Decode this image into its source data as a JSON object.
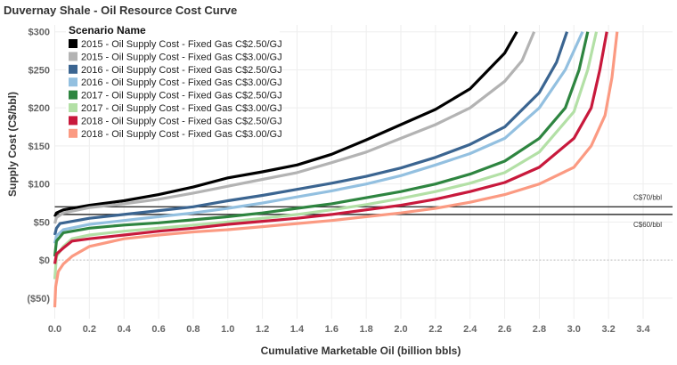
{
  "chart_data": {
    "type": "line",
    "title": "Duvernay Shale - Oil Resource Cost Curve",
    "xlabel": "Cumulative Marketable Oil (billion bbls)",
    "ylabel": "Supply Cost (C$/bbl)",
    "xlim": [
      0,
      3.57
    ],
    "ylim": [
      -77,
      309
    ],
    "grid": true,
    "legend": {
      "title": "Scenario Name",
      "placement": "top-left"
    },
    "x_ticks": [
      {
        "value": 0.0,
        "label": "0.0"
      },
      {
        "value": 0.2,
        "label": "0.2"
      },
      {
        "value": 0.4,
        "label": "0.4"
      },
      {
        "value": 0.6,
        "label": "0.6"
      },
      {
        "value": 0.8,
        "label": "0.8"
      },
      {
        "value": 1.0,
        "label": "1.0"
      },
      {
        "value": 1.2,
        "label": "1.2"
      },
      {
        "value": 1.4,
        "label": "1.4"
      },
      {
        "value": 1.6,
        "label": "1.6"
      },
      {
        "value": 1.8,
        "label": "1.8"
      },
      {
        "value": 2.0,
        "label": "2.0"
      },
      {
        "value": 2.2,
        "label": "2.2"
      },
      {
        "value": 2.4,
        "label": "2.4"
      },
      {
        "value": 2.6,
        "label": "2.6"
      },
      {
        "value": 2.8,
        "label": "2.8"
      },
      {
        "value": 3.0,
        "label": "3.0"
      },
      {
        "value": 3.2,
        "label": "3.2"
      },
      {
        "value": 3.4,
        "label": "3.4"
      }
    ],
    "y_ticks": [
      {
        "value": 300,
        "label": "$300"
      },
      {
        "value": 250,
        "label": "$250"
      },
      {
        "value": 200,
        "label": "$200"
      },
      {
        "value": 150,
        "label": "$150"
      },
      {
        "value": 100,
        "label": "$100"
      },
      {
        "value": 50,
        "label": "$50"
      },
      {
        "value": 0,
        "label": "$0"
      },
      {
        "value": -50,
        "label": "($50)"
      }
    ],
    "reference_lines": [
      {
        "value": 70,
        "label": "C$70/bbl"
      },
      {
        "value": 60,
        "label": "C$60/bbl"
      }
    ],
    "series": [
      {
        "name": "2015 - Oil Supply Cost - Fixed Gas C$2.50/GJ",
        "color": "#000000",
        "x": [
          0,
          0.01,
          0.05,
          0.2,
          0.4,
          0.6,
          0.8,
          1.0,
          1.2,
          1.4,
          1.6,
          1.8,
          2.0,
          2.2,
          2.4,
          2.6,
          2.67
        ],
        "y": [
          57,
          62,
          66,
          72,
          78,
          86,
          96,
          108,
          116,
          125,
          139,
          158,
          178,
          198,
          225,
          272,
          300
        ]
      },
      {
        "name": "2015 - Oil Supply Cost - Fixed Gas C$3.00/GJ",
        "color": "#b3b3b3",
        "x": [
          0,
          0.01,
          0.05,
          0.2,
          0.4,
          0.6,
          0.8,
          1.0,
          1.2,
          1.4,
          1.6,
          1.8,
          2.0,
          2.2,
          2.4,
          2.6,
          2.7,
          2.77
        ],
        "y": [
          48,
          56,
          62,
          69,
          74,
          80,
          88,
          97,
          106,
          115,
          128,
          142,
          160,
          178,
          200,
          235,
          262,
          300
        ]
      },
      {
        "name": "2016 - Oil Supply Cost - Fixed Gas C$2.50/GJ",
        "color": "#3b6591",
        "x": [
          0,
          0.01,
          0.03,
          0.2,
          0.4,
          0.6,
          0.8,
          1.0,
          1.2,
          1.4,
          1.6,
          1.8,
          2.0,
          2.2,
          2.4,
          2.6,
          2.8,
          2.9,
          2.96
        ],
        "y": [
          33,
          42,
          48,
          55,
          60,
          65,
          70,
          78,
          85,
          93,
          101,
          110,
          121,
          135,
          152,
          175,
          220,
          260,
          300
        ]
      },
      {
        "name": "2016 - Oil Supply Cost - Fixed Gas C$3.00/GJ",
        "color": "#93c0e0",
        "x": [
          0,
          0.01,
          0.05,
          0.2,
          0.4,
          0.6,
          0.8,
          1.0,
          1.2,
          1.4,
          1.6,
          1.8,
          2.0,
          2.2,
          2.4,
          2.6,
          2.8,
          2.95,
          3.05
        ],
        "y": [
          22,
          32,
          40,
          47,
          52,
          57,
          62,
          68,
          75,
          83,
          91,
          100,
          111,
          125,
          140,
          160,
          200,
          250,
          300
        ]
      },
      {
        "name": "2017 - Oil Supply Cost - Fixed Gas C$2.50/GJ",
        "color": "#2e8540",
        "x": [
          0,
          0.01,
          0.05,
          0.2,
          0.4,
          0.6,
          0.8,
          1.0,
          1.2,
          1.4,
          1.6,
          1.8,
          2.0,
          2.2,
          2.4,
          2.6,
          2.8,
          2.95,
          3.03,
          3.08
        ],
        "y": [
          5,
          25,
          36,
          42,
          46,
          49,
          53,
          57,
          62,
          68,
          74,
          82,
          90,
          100,
          113,
          130,
          160,
          200,
          250,
          300
        ]
      },
      {
        "name": "2017 - Oil Supply Cost - Fixed Gas C$3.00/GJ",
        "color": "#b3e0a6",
        "x": [
          0,
          0.01,
          0.05,
          0.1,
          0.2,
          0.4,
          0.6,
          0.8,
          1.0,
          1.2,
          1.4,
          1.6,
          1.8,
          2.0,
          2.2,
          2.4,
          2.6,
          2.8,
          3.0,
          3.08,
          3.13
        ],
        "y": [
          -25,
          5,
          18,
          28,
          33,
          38,
          42,
          46,
          50,
          55,
          60,
          66,
          73,
          81,
          90,
          101,
          115,
          142,
          195,
          250,
          300
        ]
      },
      {
        "name": "2018 - Oil Supply Cost - Fixed Gas C$2.50/GJ",
        "color": "#c8193c",
        "x": [
          0,
          0.01,
          0.05,
          0.1,
          0.2,
          0.4,
          0.6,
          0.8,
          1.0,
          1.2,
          1.4,
          1.6,
          1.8,
          2.0,
          2.2,
          2.4,
          2.6,
          2.8,
          3.0,
          3.1,
          3.15,
          3.19
        ],
        "y": [
          -5,
          8,
          16,
          25,
          28,
          33,
          38,
          42,
          47,
          51,
          55,
          60,
          66,
          72,
          80,
          90,
          102,
          122,
          160,
          200,
          250,
          300
        ]
      },
      {
        "name": "2018 - Oil Supply Cost - Fixed Gas C$3.00/GJ",
        "color": "#fb9a82",
        "x": [
          0,
          0.005,
          0.02,
          0.05,
          0.1,
          0.2,
          0.4,
          0.6,
          0.8,
          1.0,
          1.2,
          1.4,
          1.6,
          1.8,
          2.0,
          2.2,
          2.4,
          2.6,
          2.8,
          3.0,
          3.1,
          3.18,
          3.22,
          3.25
        ],
        "y": [
          -62,
          -35,
          -15,
          -5,
          5,
          18,
          28,
          33,
          37,
          40,
          44,
          48,
          52,
          57,
          62,
          68,
          76,
          86,
          100,
          122,
          150,
          190,
          240,
          300
        ]
      }
    ]
  }
}
